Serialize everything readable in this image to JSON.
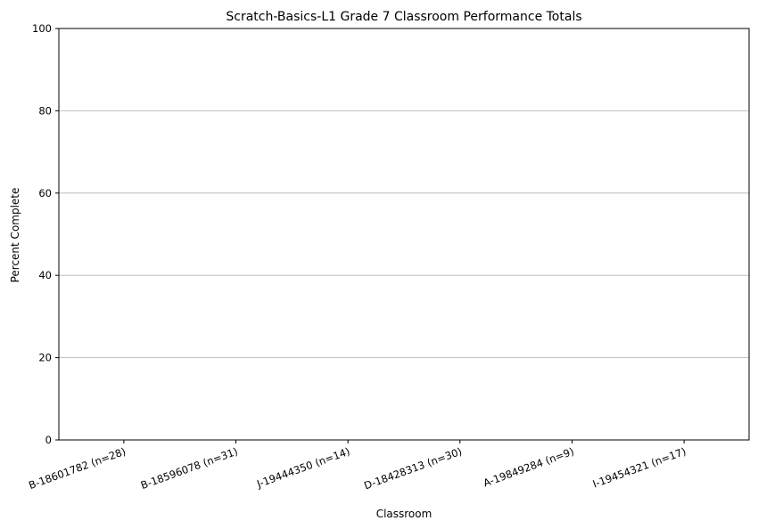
{
  "chart_data": {
    "type": "bar",
    "title": "Scratch-Basics-L1 Grade 7 Classroom Performance Totals",
    "xlabel": "Classroom",
    "ylabel": "Percent Complete",
    "categories": [
      "B-18601782 (n=28)",
      "B-18596078 (n=31)",
      "J-19444350 (n=14)",
      "D-18428313 (n=30)",
      "A-19849284 (n=9)",
      "I-19454321 (n=17)"
    ],
    "values": [
      0,
      0,
      0,
      0,
      0,
      0
    ],
    "ylim": [
      0,
      100
    ],
    "yticks": [
      0,
      20,
      40,
      60,
      80,
      100
    ],
    "grid": "y-major",
    "legend": "none",
    "bar_color": "#1f77b4"
  }
}
